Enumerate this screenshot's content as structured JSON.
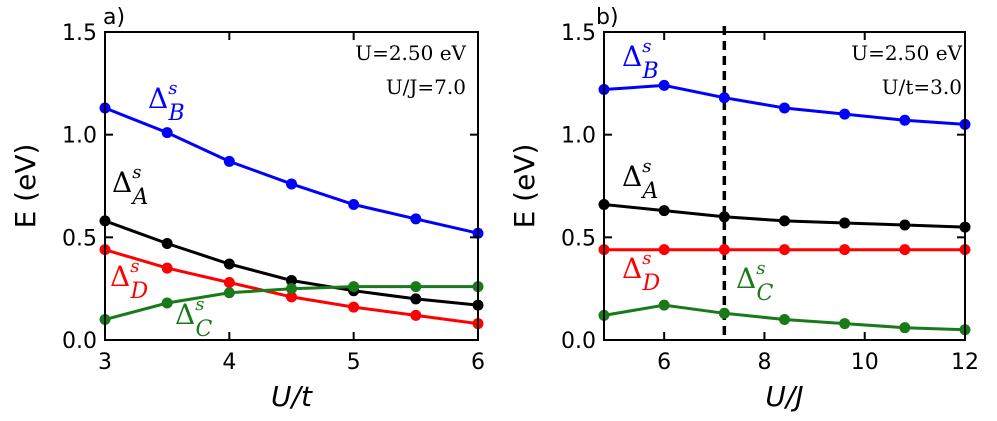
{
  "chart_data": [
    {
      "type": "line",
      "panel_label": "a)",
      "xlabel": "U/t",
      "ylabel": "E (eV)",
      "xlim": [
        3,
        6
      ],
      "ylim": [
        0.0,
        1.5
      ],
      "xticks": [
        3,
        4,
        5,
        6
      ],
      "yticks": [
        0.0,
        0.5,
        1.0,
        1.5
      ],
      "xtick_labels": [
        "3",
        "4",
        "5",
        "6"
      ],
      "ytick_labels": [
        "0.0",
        "0.5",
        "1.0",
        "1.5"
      ],
      "annotations": [
        "U=2.50 eV",
        "U/J=7.0"
      ],
      "series": [
        {
          "name": "B",
          "label": "Δ",
          "sup": "s",
          "sub": "B",
          "color": "#0000ff",
          "x": [
            3,
            3.5,
            4,
            4.5,
            5,
            5.5,
            6
          ],
          "values": [
            1.13,
            1.01,
            0.87,
            0.76,
            0.66,
            0.59,
            0.52
          ]
        },
        {
          "name": "A",
          "label": "Δ",
          "sup": "s",
          "sub": "A",
          "color": "#000000",
          "x": [
            3,
            3.5,
            4,
            4.5,
            5,
            5.5,
            6
          ],
          "values": [
            0.58,
            0.47,
            0.37,
            0.29,
            0.24,
            0.2,
            0.17
          ]
        },
        {
          "name": "D",
          "label": "Δ",
          "sup": "s",
          "sub": "D",
          "color": "#ff0000",
          "x": [
            3,
            3.5,
            4,
            4.5,
            5,
            5.5,
            6
          ],
          "values": [
            0.44,
            0.35,
            0.28,
            0.21,
            0.16,
            0.12,
            0.08
          ]
        },
        {
          "name": "C",
          "label": "Δ",
          "sup": "s",
          "sub": "C",
          "color": "#1a7a1a",
          "x": [
            3,
            3.5,
            4,
            4.5,
            5,
            5.5,
            6
          ],
          "values": [
            0.1,
            0.18,
            0.23,
            0.25,
            0.26,
            0.26,
            0.26
          ]
        }
      ]
    },
    {
      "type": "line",
      "panel_label": "b)",
      "xlabel": "U/J",
      "ylabel": "E (eV)",
      "xlim": [
        4.8,
        12
      ],
      "ylim": [
        0.0,
        1.5
      ],
      "xticks": [
        6,
        8,
        10,
        12
      ],
      "yticks": [
        0.0,
        0.5,
        1.0,
        1.5
      ],
      "xtick_labels": [
        "6",
        "8",
        "10",
        "12"
      ],
      "ytick_labels": [
        "0.0",
        "0.5",
        "1.0",
        "1.5"
      ],
      "annotations": [
        "U=2.50 eV",
        "U/t=3.0"
      ],
      "vline_x": 7.2,
      "series": [
        {
          "name": "B",
          "label": "Δ",
          "sup": "s",
          "sub": "B",
          "color": "#0000ff",
          "x": [
            4.8,
            6.0,
            7.2,
            8.4,
            9.6,
            10.8,
            12.0
          ],
          "values": [
            1.22,
            1.24,
            1.18,
            1.13,
            1.1,
            1.07,
            1.05
          ]
        },
        {
          "name": "A",
          "label": "Δ",
          "sup": "s",
          "sub": "A",
          "color": "#000000",
          "x": [
            4.8,
            6.0,
            7.2,
            8.4,
            9.6,
            10.8,
            12.0
          ],
          "values": [
            0.66,
            0.63,
            0.6,
            0.58,
            0.57,
            0.56,
            0.55
          ]
        },
        {
          "name": "D",
          "label": "Δ",
          "sup": "s",
          "sub": "D",
          "color": "#ff0000",
          "x": [
            4.8,
            6.0,
            7.2,
            8.4,
            9.6,
            10.8,
            12.0
          ],
          "values": [
            0.44,
            0.44,
            0.44,
            0.44,
            0.44,
            0.44,
            0.44
          ]
        },
        {
          "name": "C",
          "label": "Δ",
          "sup": "s",
          "sub": "C",
          "color": "#1a7a1a",
          "x": [
            4.8,
            6.0,
            7.2,
            8.4,
            9.6,
            10.8,
            12.0
          ],
          "values": [
            0.12,
            0.17,
            0.13,
            0.1,
            0.08,
            0.06,
            0.05
          ]
        }
      ]
    }
  ]
}
